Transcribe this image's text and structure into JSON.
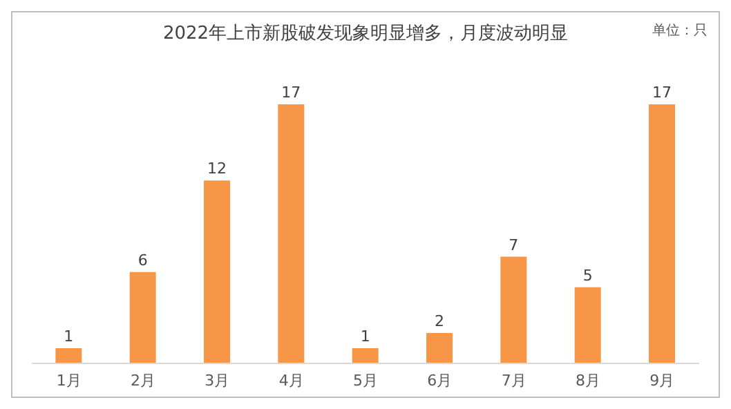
{
  "chart_data": {
    "type": "bar",
    "title": "2022年上市新股破发现象明显增多，月度波动明显",
    "annotations": [
      "单位：只"
    ],
    "categories": [
      "1月",
      "2月",
      "3月",
      "4月",
      "5月",
      "6月",
      "7月",
      "8月",
      "9月"
    ],
    "values": [
      1,
      6,
      12,
      17,
      1,
      2,
      7,
      5,
      17
    ],
    "color": "#f79646",
    "data_labels": true
  }
}
